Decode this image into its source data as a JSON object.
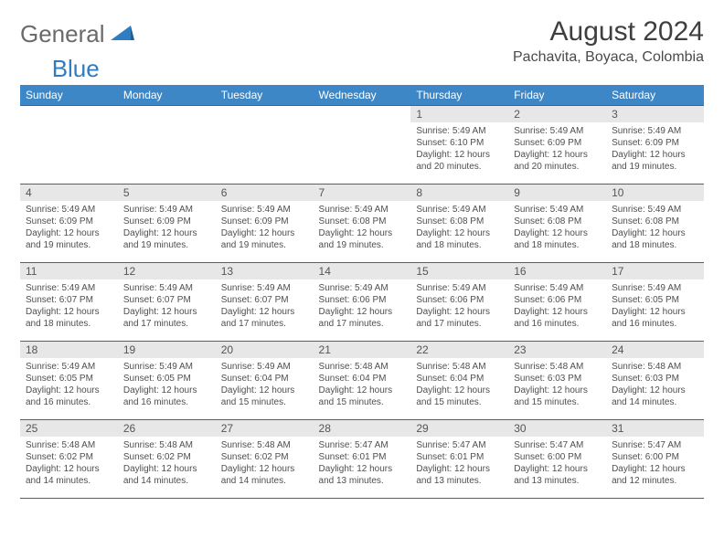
{
  "logo": {
    "word1": "General",
    "word2": "Blue"
  },
  "title": "August 2024",
  "location": "Pachavita, Boyaca, Colombia",
  "colors": {
    "header_bg": "#3d87c7",
    "header_text": "#ffffff",
    "daynum_bg": "#e7e7e7",
    "border": "#2a6aa3",
    "logo_gray": "#6a6a6a",
    "logo_blue": "#2f7dc0"
  },
  "day_headers": [
    "Sunday",
    "Monday",
    "Tuesday",
    "Wednesday",
    "Thursday",
    "Friday",
    "Saturday"
  ],
  "weeks": [
    [
      {
        "n": "",
        "sr": "",
        "ss": "",
        "dl": ""
      },
      {
        "n": "",
        "sr": "",
        "ss": "",
        "dl": ""
      },
      {
        "n": "",
        "sr": "",
        "ss": "",
        "dl": ""
      },
      {
        "n": "",
        "sr": "",
        "ss": "",
        "dl": ""
      },
      {
        "n": "1",
        "sr": "Sunrise: 5:49 AM",
        "ss": "Sunset: 6:10 PM",
        "dl": "Daylight: 12 hours and 20 minutes."
      },
      {
        "n": "2",
        "sr": "Sunrise: 5:49 AM",
        "ss": "Sunset: 6:09 PM",
        "dl": "Daylight: 12 hours and 20 minutes."
      },
      {
        "n": "3",
        "sr": "Sunrise: 5:49 AM",
        "ss": "Sunset: 6:09 PM",
        "dl": "Daylight: 12 hours and 19 minutes."
      }
    ],
    [
      {
        "n": "4",
        "sr": "Sunrise: 5:49 AM",
        "ss": "Sunset: 6:09 PM",
        "dl": "Daylight: 12 hours and 19 minutes."
      },
      {
        "n": "5",
        "sr": "Sunrise: 5:49 AM",
        "ss": "Sunset: 6:09 PM",
        "dl": "Daylight: 12 hours and 19 minutes."
      },
      {
        "n": "6",
        "sr": "Sunrise: 5:49 AM",
        "ss": "Sunset: 6:09 PM",
        "dl": "Daylight: 12 hours and 19 minutes."
      },
      {
        "n": "7",
        "sr": "Sunrise: 5:49 AM",
        "ss": "Sunset: 6:08 PM",
        "dl": "Daylight: 12 hours and 19 minutes."
      },
      {
        "n": "8",
        "sr": "Sunrise: 5:49 AM",
        "ss": "Sunset: 6:08 PM",
        "dl": "Daylight: 12 hours and 18 minutes."
      },
      {
        "n": "9",
        "sr": "Sunrise: 5:49 AM",
        "ss": "Sunset: 6:08 PM",
        "dl": "Daylight: 12 hours and 18 minutes."
      },
      {
        "n": "10",
        "sr": "Sunrise: 5:49 AM",
        "ss": "Sunset: 6:08 PM",
        "dl": "Daylight: 12 hours and 18 minutes."
      }
    ],
    [
      {
        "n": "11",
        "sr": "Sunrise: 5:49 AM",
        "ss": "Sunset: 6:07 PM",
        "dl": "Daylight: 12 hours and 18 minutes."
      },
      {
        "n": "12",
        "sr": "Sunrise: 5:49 AM",
        "ss": "Sunset: 6:07 PM",
        "dl": "Daylight: 12 hours and 17 minutes."
      },
      {
        "n": "13",
        "sr": "Sunrise: 5:49 AM",
        "ss": "Sunset: 6:07 PM",
        "dl": "Daylight: 12 hours and 17 minutes."
      },
      {
        "n": "14",
        "sr": "Sunrise: 5:49 AM",
        "ss": "Sunset: 6:06 PM",
        "dl": "Daylight: 12 hours and 17 minutes."
      },
      {
        "n": "15",
        "sr": "Sunrise: 5:49 AM",
        "ss": "Sunset: 6:06 PM",
        "dl": "Daylight: 12 hours and 17 minutes."
      },
      {
        "n": "16",
        "sr": "Sunrise: 5:49 AM",
        "ss": "Sunset: 6:06 PM",
        "dl": "Daylight: 12 hours and 16 minutes."
      },
      {
        "n": "17",
        "sr": "Sunrise: 5:49 AM",
        "ss": "Sunset: 6:05 PM",
        "dl": "Daylight: 12 hours and 16 minutes."
      }
    ],
    [
      {
        "n": "18",
        "sr": "Sunrise: 5:49 AM",
        "ss": "Sunset: 6:05 PM",
        "dl": "Daylight: 12 hours and 16 minutes."
      },
      {
        "n": "19",
        "sr": "Sunrise: 5:49 AM",
        "ss": "Sunset: 6:05 PM",
        "dl": "Daylight: 12 hours and 16 minutes."
      },
      {
        "n": "20",
        "sr": "Sunrise: 5:49 AM",
        "ss": "Sunset: 6:04 PM",
        "dl": "Daylight: 12 hours and 15 minutes."
      },
      {
        "n": "21",
        "sr": "Sunrise: 5:48 AM",
        "ss": "Sunset: 6:04 PM",
        "dl": "Daylight: 12 hours and 15 minutes."
      },
      {
        "n": "22",
        "sr": "Sunrise: 5:48 AM",
        "ss": "Sunset: 6:04 PM",
        "dl": "Daylight: 12 hours and 15 minutes."
      },
      {
        "n": "23",
        "sr": "Sunrise: 5:48 AM",
        "ss": "Sunset: 6:03 PM",
        "dl": "Daylight: 12 hours and 15 minutes."
      },
      {
        "n": "24",
        "sr": "Sunrise: 5:48 AM",
        "ss": "Sunset: 6:03 PM",
        "dl": "Daylight: 12 hours and 14 minutes."
      }
    ],
    [
      {
        "n": "25",
        "sr": "Sunrise: 5:48 AM",
        "ss": "Sunset: 6:02 PM",
        "dl": "Daylight: 12 hours and 14 minutes."
      },
      {
        "n": "26",
        "sr": "Sunrise: 5:48 AM",
        "ss": "Sunset: 6:02 PM",
        "dl": "Daylight: 12 hours and 14 minutes."
      },
      {
        "n": "27",
        "sr": "Sunrise: 5:48 AM",
        "ss": "Sunset: 6:02 PM",
        "dl": "Daylight: 12 hours and 14 minutes."
      },
      {
        "n": "28",
        "sr": "Sunrise: 5:47 AM",
        "ss": "Sunset: 6:01 PM",
        "dl": "Daylight: 12 hours and 13 minutes."
      },
      {
        "n": "29",
        "sr": "Sunrise: 5:47 AM",
        "ss": "Sunset: 6:01 PM",
        "dl": "Daylight: 12 hours and 13 minutes."
      },
      {
        "n": "30",
        "sr": "Sunrise: 5:47 AM",
        "ss": "Sunset: 6:00 PM",
        "dl": "Daylight: 12 hours and 13 minutes."
      },
      {
        "n": "31",
        "sr": "Sunrise: 5:47 AM",
        "ss": "Sunset: 6:00 PM",
        "dl": "Daylight: 12 hours and 12 minutes."
      }
    ]
  ]
}
